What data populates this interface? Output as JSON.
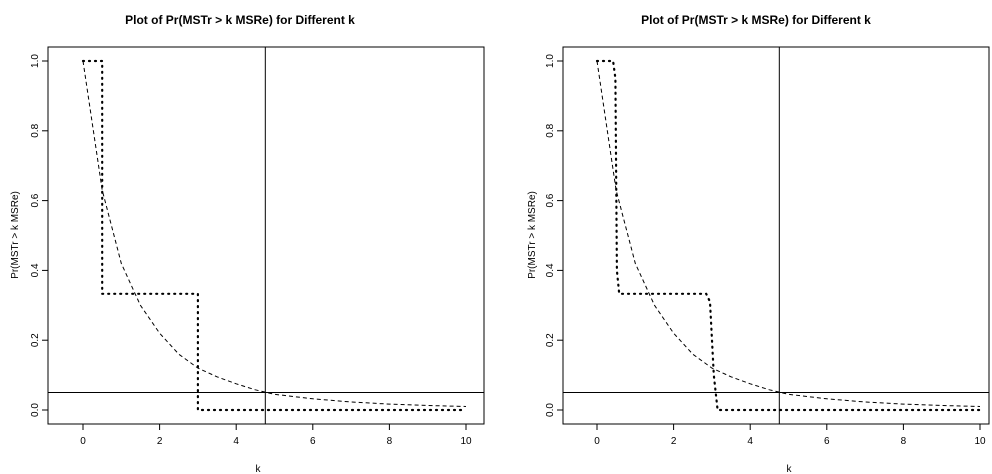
{
  "chart_data": [
    {
      "type": "line",
      "title": "Plot of Pr(MSTr > k MSRe) for Different k",
      "xlabel": "k",
      "ylabel": "Pr(MSTr > k MSRe)",
      "xlim": [
        0,
        10
      ],
      "ylim": [
        0,
        1
      ],
      "xticks": [
        "0",
        "2",
        "4",
        "6",
        "8",
        "10"
      ],
      "yticks": [
        "0.0",
        "0.2",
        "0.4",
        "0.6",
        "0.8",
        "1.0"
      ],
      "grid": false,
      "series": [
        {
          "style": "dotted-step",
          "x": [
            0,
            0.5,
            0.5,
            3.0,
            3.0,
            10
          ],
          "y": [
            1.0,
            1.0,
            0.333,
            0.333,
            0.0,
            0.0
          ]
        },
        {
          "style": "dashed-curve",
          "x": [
            0,
            0.5,
            1,
            1.5,
            2,
            2.5,
            3,
            3.5,
            4,
            4.5,
            5,
            6,
            7,
            8,
            9,
            10
          ],
          "y": [
            1.0,
            0.63,
            0.42,
            0.3,
            0.22,
            0.16,
            0.12,
            0.095,
            0.075,
            0.058,
            0.045,
            0.032,
            0.023,
            0.017,
            0.013,
            0.01
          ]
        }
      ],
      "reference_lines": {
        "vertical_x": 4.76,
        "horizontal_y": 0.05
      }
    },
    {
      "type": "line",
      "title": "Plot of Pr(MSTr > k MSRe) for Different k",
      "xlabel": "k",
      "ylabel": "Pr(MSTr > k MSRe)",
      "xlim": [
        0,
        10
      ],
      "ylim": [
        0,
        1
      ],
      "xticks": [
        "0",
        "2",
        "4",
        "6",
        "8",
        "10"
      ],
      "yticks": [
        "0.0",
        "0.2",
        "0.4",
        "0.6",
        "0.8",
        "1.0"
      ],
      "grid": false,
      "series": [
        {
          "style": "dotted-step",
          "x": [
            0,
            0.42,
            0.48,
            0.52,
            0.58,
            2.85,
            2.95,
            3.05,
            3.15,
            10
          ],
          "y": [
            1.0,
            1.0,
            0.95,
            0.4,
            0.333,
            0.333,
            0.31,
            0.1,
            0.0,
            0.0
          ]
        },
        {
          "style": "dashed-curve",
          "x": [
            0,
            0.5,
            1,
            1.5,
            2,
            2.5,
            3,
            3.5,
            4,
            4.5,
            5,
            6,
            7,
            8,
            9,
            10
          ],
          "y": [
            1.0,
            0.63,
            0.42,
            0.3,
            0.22,
            0.16,
            0.12,
            0.095,
            0.075,
            0.058,
            0.045,
            0.032,
            0.023,
            0.017,
            0.013,
            0.01
          ]
        }
      ],
      "reference_lines": {
        "vertical_x": 4.76,
        "horizontal_y": 0.05
      }
    }
  ]
}
